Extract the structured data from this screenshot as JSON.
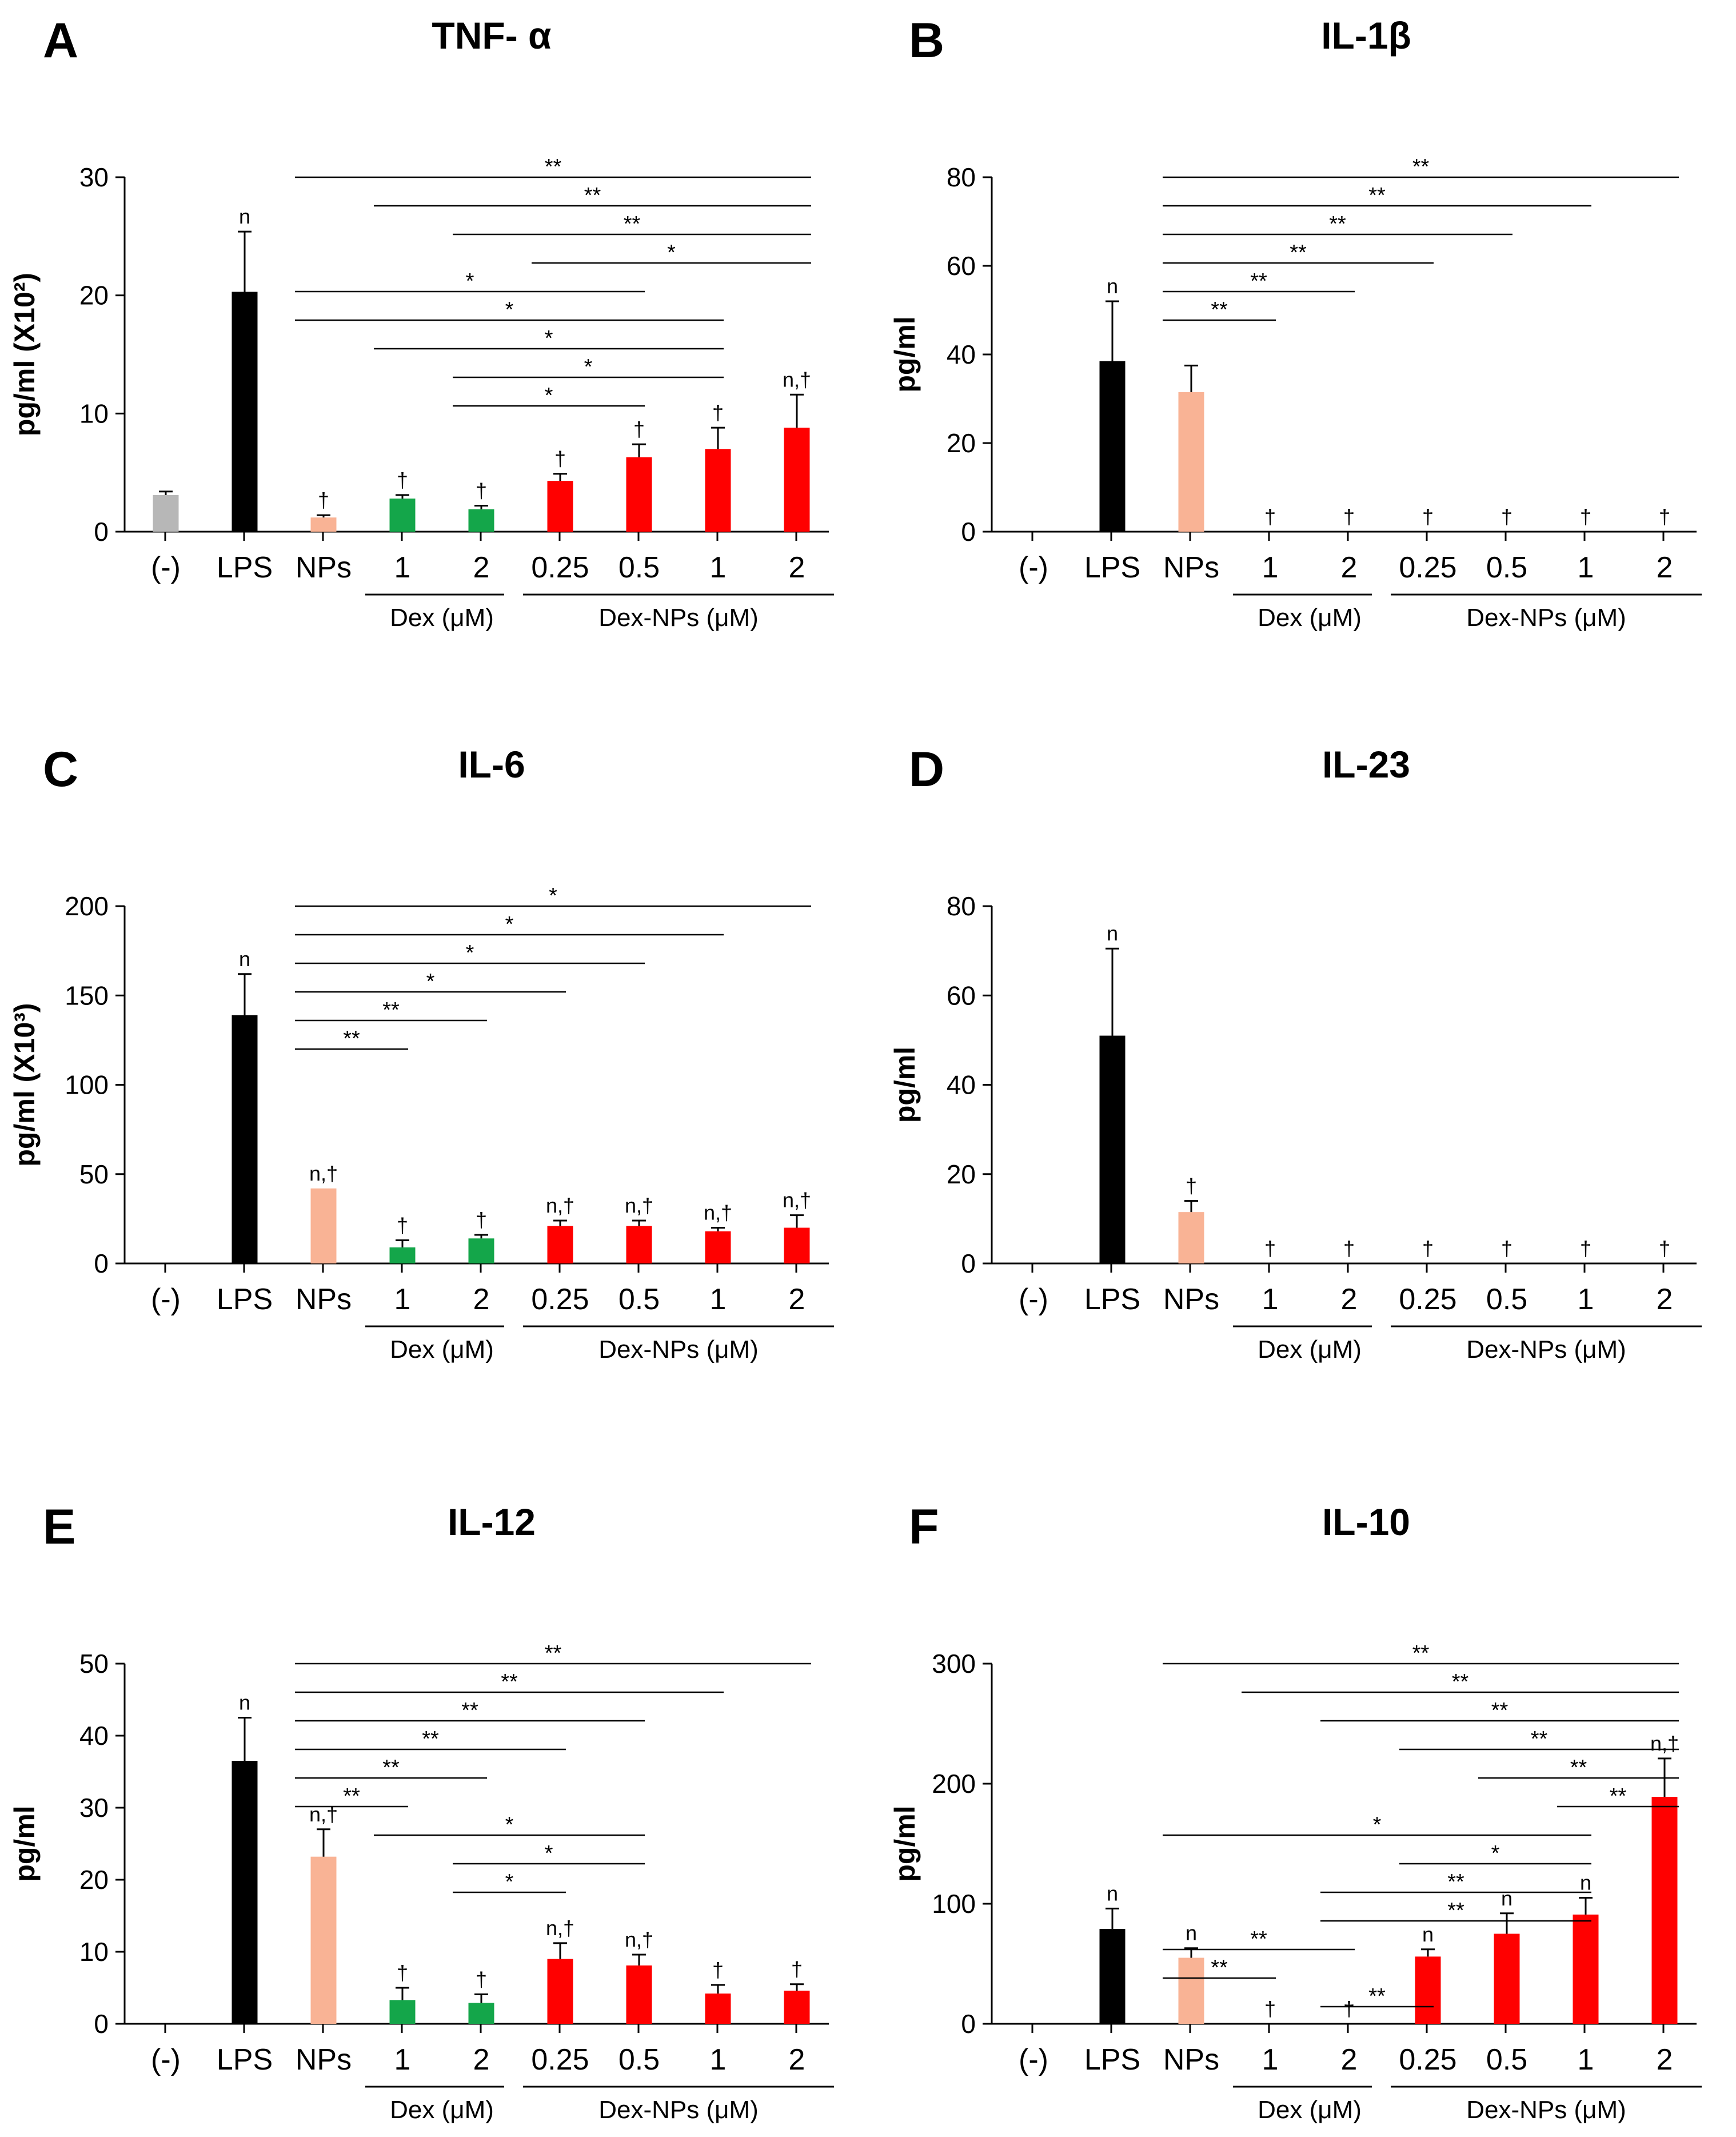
{
  "categories": [
    "(-)",
    "LPS",
    "NPs",
    "1",
    "2",
    "0.25",
    "0.5",
    "1",
    "2"
  ],
  "groups": {
    "dex": "Dex (μM)",
    "dexnps": "Dex-NPs (μM)"
  },
  "colors": {
    "neg": "#b7b7b7",
    "lps": "#000000",
    "nps": "#f9b395",
    "dex": "#14a64a",
    "dexnps": "#ff0000"
  },
  "chart_data": [
    {
      "type": "bar",
      "panel": "A",
      "title": "TNF- α",
      "ylabel": "pg/ml (X10²)",
      "ylim": [
        0,
        30
      ],
      "yticks": [
        0,
        10,
        20,
        30
      ],
      "values": [
        3.1,
        20.3,
        1.2,
        2.8,
        1.9,
        4.3,
        6.3,
        7.0,
        8.8
      ],
      "errors": [
        0.3,
        5.1,
        0.2,
        0.3,
        0.3,
        0.6,
        1.1,
        1.8,
        2.8
      ],
      "marks": [
        "",
        "n",
        "†",
        "†",
        "†",
        "†",
        "†",
        "†",
        "n,†"
      ],
      "brackets": [
        {
          "from": 2,
          "to": 8,
          "label": "**"
        },
        {
          "from": 3,
          "to": 8,
          "label": "**"
        },
        {
          "from": 4,
          "to": 8,
          "label": "**"
        },
        {
          "from": 5,
          "to": 8,
          "label": "*"
        },
        {
          "from": 2,
          "to": 6,
          "label": "*"
        },
        {
          "from": 2,
          "to": 7,
          "label": "*"
        },
        {
          "from": 3,
          "to": 7,
          "label": "*"
        },
        {
          "from": 4,
          "to": 7,
          "label": "*"
        },
        {
          "from": 4,
          "to": 6,
          "label": "*"
        }
      ]
    },
    {
      "type": "bar",
      "panel": "B",
      "title": "IL-1β",
      "ylabel": "pg/ml",
      "ylim": [
        0,
        80
      ],
      "yticks": [
        0,
        20,
        40,
        60,
        80
      ],
      "values": [
        0,
        38.5,
        31.5,
        0,
        0,
        0,
        0,
        0,
        0
      ],
      "errors": [
        0,
        13.5,
        6.0,
        0,
        0,
        0,
        0,
        0,
        0
      ],
      "marks": [
        "",
        "n",
        "",
        "†",
        "†",
        "†",
        "†",
        "†",
        "†"
      ],
      "brackets": [
        {
          "from": 2,
          "to": 8,
          "label": "**"
        },
        {
          "from": 2,
          "to": 7,
          "label": "**"
        },
        {
          "from": 2,
          "to": 6,
          "label": "**"
        },
        {
          "from": 2,
          "to": 5,
          "label": "**"
        },
        {
          "from": 2,
          "to": 4,
          "label": "**"
        },
        {
          "from": 2,
          "to": 3,
          "label": "**"
        }
      ]
    },
    {
      "type": "bar",
      "panel": "C",
      "title": "IL-6",
      "ylabel": "pg/ml (X10³)",
      "ylim": [
        0,
        200
      ],
      "yticks": [
        0,
        50,
        100,
        150,
        200
      ],
      "values": [
        0,
        139,
        42,
        9,
        14,
        21,
        21,
        18,
        20
      ],
      "errors": [
        0,
        23,
        0,
        4,
        2,
        3,
        3,
        2,
        7
      ],
      "marks": [
        "",
        "n",
        "n,†",
        "†",
        "†",
        "n,†",
        "n,†",
        "n,†",
        "n,†"
      ],
      "brackets": [
        {
          "from": 2,
          "to": 8,
          "label": "*"
        },
        {
          "from": 2,
          "to": 7,
          "label": "*"
        },
        {
          "from": 2,
          "to": 6,
          "label": "*"
        },
        {
          "from": 2,
          "to": 5,
          "label": "*"
        },
        {
          "from": 2,
          "to": 4,
          "label": "**"
        },
        {
          "from": 2,
          "to": 3,
          "label": "**"
        }
      ]
    },
    {
      "type": "bar",
      "panel": "D",
      "title": "IL-23",
      "ylabel": "pg/ml",
      "ylim": [
        0,
        80
      ],
      "yticks": [
        0,
        20,
        40,
        60,
        80
      ],
      "values": [
        0,
        51,
        11.5,
        0,
        0,
        0,
        0,
        0,
        0
      ],
      "errors": [
        0,
        19.5,
        2.5,
        0,
        0,
        0,
        0,
        0,
        0
      ],
      "marks": [
        "",
        "n",
        "†",
        "†",
        "†",
        "†",
        "†",
        "†",
        "†"
      ],
      "brackets": []
    },
    {
      "type": "bar",
      "panel": "E",
      "title": "IL-12",
      "ylabel": "pg/ml",
      "ylim": [
        0,
        50
      ],
      "yticks": [
        0,
        10,
        20,
        30,
        40,
        50
      ],
      "values": [
        0,
        36.5,
        23.2,
        3.3,
        2.9,
        9.0,
        8.1,
        4.2,
        4.6
      ],
      "errors": [
        0,
        6.0,
        3.8,
        1.7,
        1.2,
        2.2,
        1.5,
        1.2,
        0.9
      ],
      "marks": [
        "",
        "n",
        "n,†",
        "†",
        "†",
        "n,†",
        "n,†",
        "†",
        "†"
      ],
      "brackets": [
        {
          "from": 2,
          "to": 8,
          "label": "**"
        },
        {
          "from": 2,
          "to": 7,
          "label": "**"
        },
        {
          "from": 2,
          "to": 6,
          "label": "**"
        },
        {
          "from": 2,
          "to": 5,
          "label": "**"
        },
        {
          "from": 2,
          "to": 4,
          "label": "**"
        },
        {
          "from": 2,
          "to": 3,
          "label": "**"
        },
        {
          "from": 3,
          "to": 6,
          "label": "*"
        },
        {
          "from": 4,
          "to": 6,
          "label": "*"
        },
        {
          "from": 4,
          "to": 5,
          "label": "*"
        }
      ]
    },
    {
      "type": "bar",
      "panel": "F",
      "title": "IL-10",
      "ylabel": "pg/ml",
      "ylim": [
        0,
        300
      ],
      "yticks": [
        0,
        100,
        200,
        300
      ],
      "values": [
        0,
        79,
        55,
        0,
        0,
        56,
        75,
        91,
        189
      ],
      "errors": [
        0,
        17,
        8,
        0,
        0,
        6,
        17,
        14,
        32
      ],
      "marks": [
        "",
        "n",
        "n",
        "†",
        "†",
        "n",
        "n",
        "n",
        "n,†"
      ],
      "brackets": [
        {
          "from": 2,
          "to": 8,
          "label": "**"
        },
        {
          "from": 3,
          "to": 8,
          "label": "**"
        },
        {
          "from": 4,
          "to": 8,
          "label": "**"
        },
        {
          "from": 5,
          "to": 8,
          "label": "**"
        },
        {
          "from": 6,
          "to": 8,
          "label": "**"
        },
        {
          "from": 7,
          "to": 8,
          "label": "**"
        },
        {
          "from": 2,
          "to": 7,
          "label": "*"
        },
        {
          "from": 5,
          "to": 7,
          "label": "*"
        },
        {
          "from": 4,
          "to": 7,
          "label": "**"
        },
        {
          "from": 4,
          "to": 7,
          "label": "**"
        },
        {
          "from": 2,
          "to": 4,
          "label": "**"
        },
        {
          "from": 2,
          "to": 3,
          "label": "**"
        },
        {
          "from": 4,
          "to": 5,
          "label": "**"
        }
      ]
    }
  ]
}
